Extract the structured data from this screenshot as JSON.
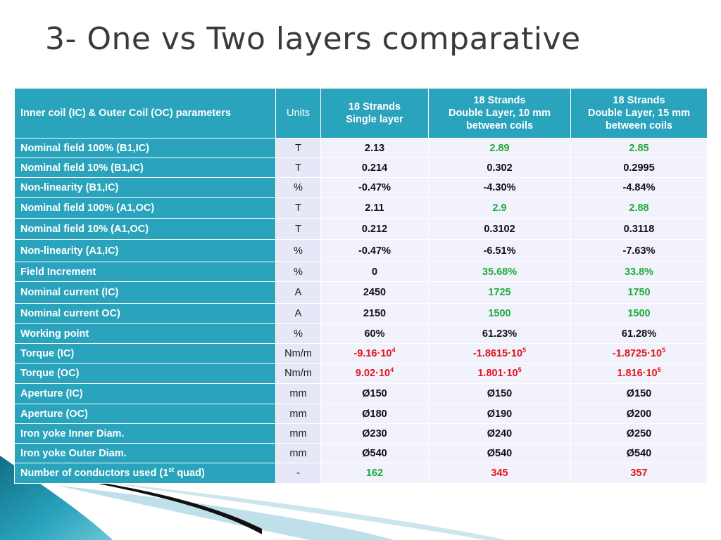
{
  "title": "3- One vs Two layers comparative",
  "colors": {
    "header_bg": "#2aa3bd",
    "unit_bg": "#e6e8f8",
    "value_bg": "#f1f2fb",
    "green": "#1faa3a",
    "red": "#e3141b",
    "black": "#111111"
  },
  "table": {
    "headers": [
      "Inner coil (IC) & Outer Coil (OC) parameters",
      "Units",
      "18 Strands\nSingle layer",
      "18 Strands\nDouble Layer, 10 mm\nbetween coils",
      "18 Strands\nDouble Layer, 15 mm\nbetween coils"
    ],
    "rows": [
      {
        "label": "Nominal field 100% (B1,IC)",
        "unit": "T",
        "cells": [
          {
            "text": "2.13",
            "color": "black"
          },
          {
            "text": "2.89",
            "color": "green"
          },
          {
            "text": "2.85",
            "color": "green"
          }
        ]
      },
      {
        "label": "Nominal field 10% (B1,IC)",
        "unit": "T",
        "cells": [
          {
            "text": "0.214",
            "color": "black"
          },
          {
            "text": "0.302",
            "color": "black"
          },
          {
            "text": "0.2995",
            "color": "black"
          }
        ]
      },
      {
        "label": "Non-linearity (B1,IC)",
        "unit": "%",
        "cells": [
          {
            "text": "-0.47%",
            "color": "black"
          },
          {
            "text": "-4.30%",
            "color": "black"
          },
          {
            "text": "-4.84%",
            "color": "black"
          }
        ]
      },
      {
        "label": "Nominal field 100% (A1,OC)",
        "unit": "T",
        "cells": [
          {
            "text": "2.11",
            "color": "black"
          },
          {
            "text": "2.9",
            "color": "green"
          },
          {
            "text": "2.88",
            "color": "green"
          }
        ]
      },
      {
        "label": "Nominal field 10% (A1,OC)",
        "unit": "T",
        "cells": [
          {
            "text": "0.212",
            "color": "black"
          },
          {
            "text": "0.3102",
            "color": "black"
          },
          {
            "text": "0.3118",
            "color": "black"
          }
        ]
      },
      {
        "label": "Non-linearity (A1,IC)",
        "unit": "%",
        "cells": [
          {
            "text": "-0.47%",
            "color": "black"
          },
          {
            "text": "-6.51%",
            "color": "black"
          },
          {
            "text": "-7.63%",
            "color": "black"
          }
        ]
      },
      {
        "label": "Field Increment",
        "unit": "%",
        "cells": [
          {
            "text": "0",
            "color": "black"
          },
          {
            "text": "35.68%",
            "color": "green"
          },
          {
            "text": "33.8%",
            "color": "green"
          }
        ]
      },
      {
        "label": "Nominal current (IC)",
        "unit": "A",
        "cells": [
          {
            "text": "2450",
            "color": "black"
          },
          {
            "text": "1725",
            "color": "green"
          },
          {
            "text": "1750",
            "color": "green"
          }
        ]
      },
      {
        "label": "Nominal current OC)",
        "unit": "A",
        "cells": [
          {
            "text": "2150",
            "color": "black"
          },
          {
            "text": "1500",
            "color": "green"
          },
          {
            "text": "1500",
            "color": "green"
          }
        ]
      },
      {
        "label": "Working point",
        "unit": "%",
        "cells": [
          {
            "text": "60%",
            "color": "black"
          },
          {
            "text": "61.23%",
            "color": "black"
          },
          {
            "text": "61.28%",
            "color": "black"
          }
        ]
      },
      {
        "label": "Torque (IC)",
        "unit": "Nm/m",
        "cells": [
          {
            "text": "-9.16·10",
            "sup": "4",
            "color": "red"
          },
          {
            "text": "-1.8615·10",
            "sup": "5",
            "color": "red"
          },
          {
            "text": "-1.8725·10",
            "sup": "5",
            "color": "red"
          }
        ]
      },
      {
        "label": "Torque (OC)",
        "unit": "Nm/m",
        "cells": [
          {
            "text": "9.02·10",
            "sup": "4",
            "color": "red"
          },
          {
            "text": "1.801·10",
            "sup": "5",
            "color": "red"
          },
          {
            "text": "1.816·10",
            "sup": "5",
            "color": "red"
          }
        ]
      },
      {
        "label": "Aperture (IC)",
        "unit": "mm",
        "cells": [
          {
            "text": "Ø150",
            "color": "black"
          },
          {
            "text": "Ø150",
            "color": "black"
          },
          {
            "text": "Ø150",
            "color": "black"
          }
        ]
      },
      {
        "label": "Aperture (OC)",
        "unit": "mm",
        "cells": [
          {
            "text": "Ø180",
            "color": "black"
          },
          {
            "text": "Ø190",
            "color": "black"
          },
          {
            "text": "Ø200",
            "color": "black"
          }
        ]
      },
      {
        "label": "Iron yoke Inner Diam.",
        "unit": "mm",
        "cells": [
          {
            "text": "Ø230",
            "color": "black"
          },
          {
            "text": "Ø240",
            "color": "black"
          },
          {
            "text": "Ø250",
            "color": "black"
          }
        ]
      },
      {
        "label": "Iron yoke Outer Diam.",
        "unit": "mm",
        "cells": [
          {
            "text": "Ø540",
            "color": "black"
          },
          {
            "text": "Ø540",
            "color": "black"
          },
          {
            "text": "Ø540",
            "color": "black"
          }
        ]
      },
      {
        "label": "Number of conductors used  (1",
        "label_sup": "st",
        "label_after": " quad)",
        "unit": "-",
        "cells": [
          {
            "text": "162",
            "color": "green"
          },
          {
            "text": "345",
            "color": "red"
          },
          {
            "text": "357",
            "color": "red"
          }
        ]
      }
    ]
  }
}
